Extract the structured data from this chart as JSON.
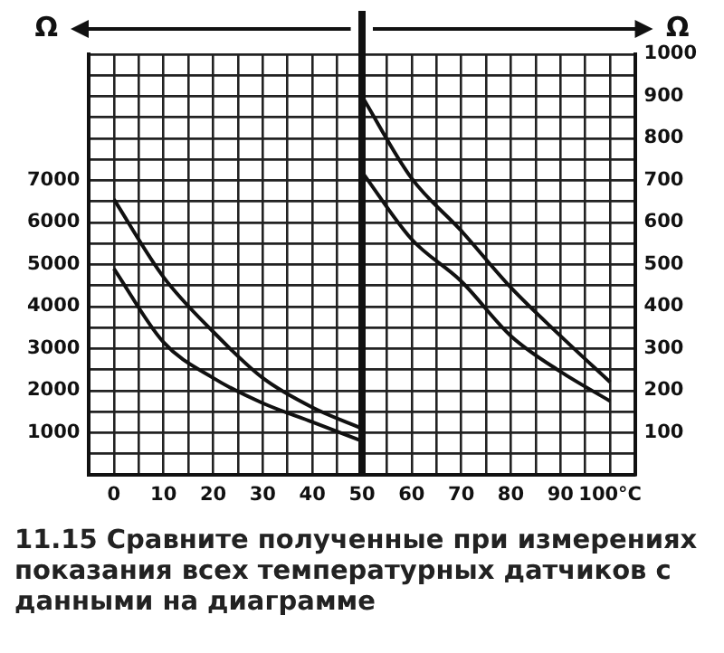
{
  "chart_data": {
    "type": "line",
    "title": "11.15 Сравните полученные при измерениях показания всех температурных датчиков с данными на диаграмме",
    "ylabel": "Ω",
    "y2label": "Ω",
    "xlim": [
      -5,
      105
    ],
    "xticks": [
      {
        "value": -5,
        "label": null
      },
      0,
      {
        "value": 5,
        "label": null
      },
      10,
      {
        "value": 15,
        "label": null
      },
      20,
      {
        "value": 25,
        "label": null
      },
      30,
      {
        "value": 35,
        "label": null
      },
      40,
      {
        "value": 45,
        "label": null
      },
      50,
      {
        "value": 55,
        "label": null
      },
      60,
      {
        "value": 65,
        "label": null
      },
      70,
      {
        "value": 75,
        "label": null
      },
      80,
      {
        "value": 85,
        "label": null
      },
      90,
      {
        "value": 95,
        "label": null
      },
      {
        "value": 100,
        "label": "100°C"
      },
      {
        "value": 105,
        "label": null
      }
    ],
    "ylim": [
      0,
      10000
    ],
    "yticks": [
      {
        "value": 0,
        "label": null
      },
      {
        "value": 500,
        "label": null
      },
      1000,
      {
        "value": 1500,
        "label": null
      },
      2000,
      {
        "value": 2500,
        "label": null
      },
      3000,
      {
        "value": 3500,
        "label": null
      },
      4000,
      {
        "value": 4500,
        "label": null
      },
      5000,
      {
        "value": 5500,
        "label": null
      },
      6000,
      {
        "value": 6500,
        "label": null
      },
      7000,
      {
        "value": 7500,
        "label": null
      },
      {
        "value": 8000,
        "label": null
      },
      {
        "value": 8500,
        "label": null
      },
      {
        "value": 9000,
        "label": null
      },
      {
        "value": 9500,
        "label": null
      },
      {
        "value": 10000,
        "label": null
      }
    ],
    "y2lim": [
      0,
      1000
    ],
    "y2ticks": [
      {
        "value": 0,
        "label": null
      },
      {
        "value": 50,
        "label": null
      },
      100,
      {
        "value": 150,
        "label": null
      },
      200,
      {
        "value": 250,
        "label": null
      },
      300,
      {
        "value": 350,
        "label": null
      },
      400,
      {
        "value": 450,
        "label": null
      },
      500,
      {
        "value": 550,
        "label": null
      },
      600,
      {
        "value": 650,
        "label": null
      },
      700,
      {
        "value": 750,
        "label": null
      },
      800,
      {
        "value": 850,
        "label": null
      },
      900,
      {
        "value": 950,
        "label": null
      },
      1000
    ],
    "grid": true,
    "legend": false,
    "marker": "none",
    "line_style": "solid",
    "ref_lines": [
      {
        "axis": "x",
        "value": 50,
        "color": "#111111"
      }
    ],
    "series": [
      {
        "color": "#111111",
        "x": [
          0,
          10,
          20,
          30,
          40,
          50
        ],
        "values": [
          6550,
          4700,
          3400,
          2300,
          1600,
          1100
        ]
      },
      {
        "color": "#111111",
        "x": [
          0,
          10,
          20,
          30,
          40,
          50
        ],
        "values": [
          4900,
          3150,
          2300,
          1700,
          1250,
          800
        ]
      },
      {
        "color": "#111111",
        "axis": "y2",
        "x": [
          50,
          60,
          70,
          80,
          90,
          100
        ],
        "values": [
          900,
          705,
          580,
          445,
          330,
          220
        ]
      },
      {
        "color": "#111111",
        "axis": "y2",
        "x": [
          50,
          60,
          70,
          80,
          90,
          100
        ],
        "values": [
          720,
          560,
          460,
          330,
          245,
          175
        ]
      }
    ]
  }
}
